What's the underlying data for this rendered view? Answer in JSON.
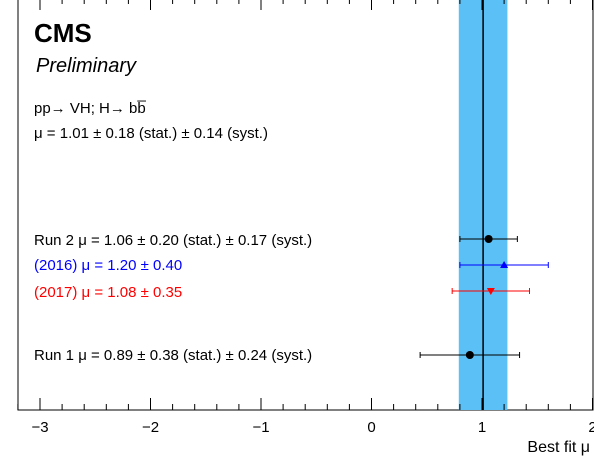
{
  "chart_data": {
    "type": "scatter",
    "experiment": "CMS",
    "status": "Preliminary",
    "process": "pp→ VH; H→ bb̅",
    "combined_text": "μ = 1.01 ± 0.18 (stat.) ± 0.14 (syst.)",
    "combined": {
      "mu": 1.01,
      "band": [
        0.79,
        1.23
      ]
    },
    "xlabel": "Best fit μ",
    "xlim": [
      -3.3,
      2.0
    ],
    "xticks": [
      -3,
      -2,
      -1,
      0,
      1,
      2
    ],
    "xtick_labels": [
      "−3",
      "−2",
      "−1",
      "0",
      "1",
      "2"
    ],
    "series": [
      {
        "label": "Run 2  μ = 1.06 ± 0.20 (stat.) ± 0.17 (syst.)",
        "mu": 1.06,
        "lo": 0.8,
        "hi": 1.32,
        "marker": "circle",
        "color": "#000000"
      },
      {
        "label": "(2016)  μ = 1.20 ± 0.40",
        "mu": 1.2,
        "lo": 0.8,
        "hi": 1.6,
        "marker": "triangle-up",
        "color": "#0000ff"
      },
      {
        "label": "(2017)  μ = 1.08 ± 0.35",
        "mu": 1.08,
        "lo": 0.73,
        "hi": 1.43,
        "marker": "triangle-down",
        "color": "#ff0000"
      },
      {
        "label": "Run 1  μ = 0.89 ± 0.38 (stat.) ± 0.24 (syst.)",
        "mu": 0.89,
        "lo": 0.44,
        "hi": 1.34,
        "marker": "circle",
        "color": "#000000"
      }
    ],
    "colors": {
      "band": "#5bc0f5",
      "axis": "#000000"
    }
  }
}
